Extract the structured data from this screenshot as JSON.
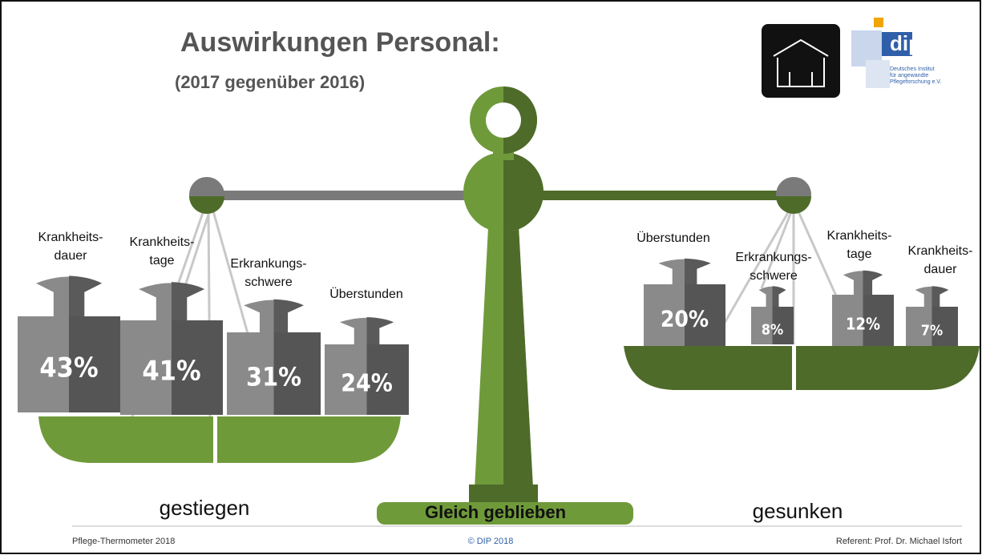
{
  "header": {
    "title": "Auswirkungen Personal:",
    "subtitle": "(2017 gegenüber 2016)"
  },
  "logo": {
    "name": "dip",
    "lines": [
      "Deutsches Institut",
      "für angewandte",
      "Pflegeforschung e.V."
    ]
  },
  "left": {
    "label": "gestiegen",
    "weights": [
      {
        "name": [
          "Krankheits-",
          "dauer"
        ],
        "value": "43%"
      },
      {
        "name": [
          "Krankheits-",
          "tage"
        ],
        "value": "41%"
      },
      {
        "name": [
          "Erkrankungs-",
          "schwere"
        ],
        "value": "31%"
      },
      {
        "name": [
          "Überstunden"
        ],
        "value": "24%"
      }
    ]
  },
  "center": {
    "label": "Gleich geblieben"
  },
  "right": {
    "label": "gesunken",
    "weights": [
      {
        "name": [
          "Überstunden"
        ],
        "value": "20%"
      },
      {
        "name": [
          "Erkrankungs-",
          "schwere"
        ],
        "value": "8%"
      },
      {
        "name": [
          "Krankheits-",
          "tage"
        ],
        "value": "12%"
      },
      {
        "name": [
          "Krankheits-",
          "dauer"
        ],
        "value": "7%"
      }
    ]
  },
  "footer": {
    "left": "Pflege-Thermometer 2018",
    "center": "© DIP 2018",
    "right": "Referent: Prof. Dr. Michael Isfort"
  }
}
